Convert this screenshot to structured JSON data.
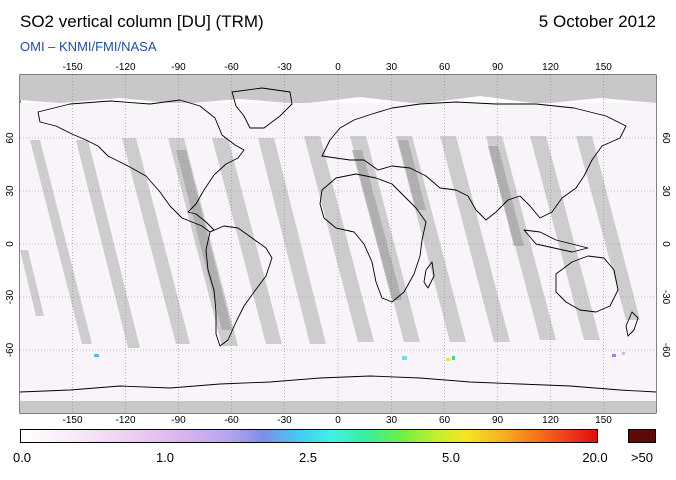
{
  "header": {
    "title": "SO2 vertical column [DU] (TRM)",
    "date": "5 October 2012",
    "credit": "OMI  –  KNMI/FMI/NASA"
  },
  "map": {
    "projection": "equirectangular",
    "lon_ticks_top": [
      "-150",
      "-120",
      "-90",
      "-60",
      "-30",
      "0",
      "30",
      "60",
      "90",
      "120",
      "150"
    ],
    "lon_ticks_bottom": [
      "-150",
      "-120",
      "-90",
      "-60",
      "-30",
      "0",
      "30",
      "60",
      "90",
      "120",
      "150"
    ],
    "lat_ticks_left": [
      "60",
      "30",
      "0",
      "-30",
      "-60"
    ],
    "lat_ticks_right": [
      "60",
      "30",
      "0",
      "-30",
      "-60"
    ],
    "colors": {
      "land_outline": "#000000",
      "missing_data": "#c8c8c8",
      "swath_gap": "#bdbdbd",
      "graticule": "#888888"
    }
  },
  "colorbar": {
    "labels": [
      "0.0",
      "1.0",
      "2.5",
      "5.0",
      "20.0"
    ],
    "overflow_label": ">50",
    "overflow_color": "#5c0a0a"
  }
}
